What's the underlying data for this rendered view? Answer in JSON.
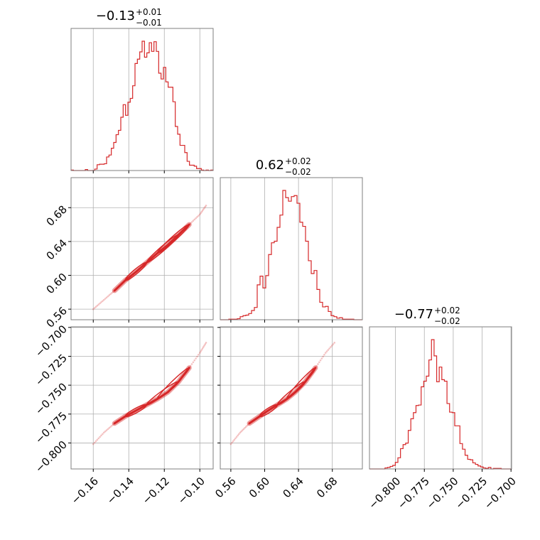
{
  "chart_data": {
    "type": "corner",
    "color": "#d62728",
    "grid": true,
    "parameters": [
      {
        "title": {
          "center": "−0.13",
          "plus": "+0.01",
          "minus": "−0.01"
        },
        "range": [
          -0.1725,
          -0.0925
        ],
        "ticks": [
          -0.16,
          -0.14,
          -0.12,
          -0.1
        ],
        "tick_labels": [
          "−0.16",
          "−0.14",
          "−0.12",
          "−0.10"
        ]
      },
      {
        "title": {
          "center": "0.62",
          "plus": "+0.02",
          "minus": "−0.02"
        },
        "range": [
          0.5475,
          0.7155
        ],
        "ticks": [
          0.56,
          0.6,
          0.64,
          0.68
        ],
        "tick_labels": [
          "0.56",
          "0.60",
          "0.64",
          "0.68"
        ]
      },
      {
        "title": {
          "center": "−0.77",
          "plus": "+0.02",
          "minus": "−0.02"
        },
        "range": [
          -0.8225,
          -0.6995
        ],
        "ticks": [
          -0.8,
          -0.775,
          -0.75,
          -0.725,
          -0.7
        ],
        "tick_labels": [
          "−0.800",
          "−0.775",
          "−0.750",
          "−0.725",
          "−0.700"
        ]
      }
    ],
    "histograms": [
      {
        "counts": [
          1,
          0,
          0,
          0,
          0,
          0,
          2,
          0,
          0,
          0,
          3,
          12,
          13,
          13,
          14,
          28,
          32,
          46,
          58,
          74,
          83,
          110,
          136,
          114,
          141,
          149,
          175,
          221,
          230,
          245,
          267,
          234,
          243,
          264,
          246,
          266,
          246,
          201,
          189,
          213,
          183,
          172,
          172,
          142,
          91,
          75,
          52,
          52,
          37,
          19,
          11,
          11,
          9,
          4,
          4,
          1,
          0,
          1,
          0,
          1
        ]
      },
      {
        "counts": [
          0,
          0,
          0,
          1,
          1,
          1,
          2,
          6,
          8,
          9,
          12,
          18,
          24,
          68,
          85,
          62,
          86,
          127,
          150,
          153,
          180,
          204,
          252,
          238,
          231,
          240,
          242,
          227,
          190,
          182,
          153,
          115,
          90,
          96,
          59,
          34,
          25,
          26,
          16,
          8,
          6,
          3,
          4,
          1,
          1,
          1,
          1,
          0,
          0,
          0
        ]
      },
      {
        "counts": [
          0,
          0,
          0,
          0,
          0,
          0,
          2,
          3,
          5,
          7,
          13,
          22,
          40,
          48,
          51,
          76,
          99,
          111,
          125,
          126,
          162,
          173,
          183,
          215,
          255,
          223,
          172,
          201,
          176,
          173,
          129,
          112,
          111,
          85,
          85,
          50,
          39,
          27,
          19,
          18,
          12,
          9,
          6,
          4,
          2,
          1,
          3,
          0,
          1,
          1,
          1,
          0,
          0,
          0,
          0
        ]
      }
    ],
    "scatter_samples": [
      [
        -0.16,
        0.56,
        -0.801
      ],
      [
        -0.154,
        0.571,
        -0.791
      ],
      [
        -0.148,
        0.582,
        -0.783
      ],
      [
        -0.142,
        0.594,
        -0.777
      ],
      [
        -0.136,
        0.604,
        -0.772
      ],
      [
        -0.13,
        0.615,
        -0.767
      ],
      [
        -0.124,
        0.626,
        -0.762
      ],
      [
        -0.118,
        0.636,
        -0.756
      ],
      [
        -0.112,
        0.648,
        -0.747
      ],
      [
        -0.106,
        0.66,
        -0.735
      ],
      [
        -0.1,
        0.672,
        -0.722
      ],
      [
        -0.096,
        0.684,
        -0.712
      ]
    ]
  }
}
